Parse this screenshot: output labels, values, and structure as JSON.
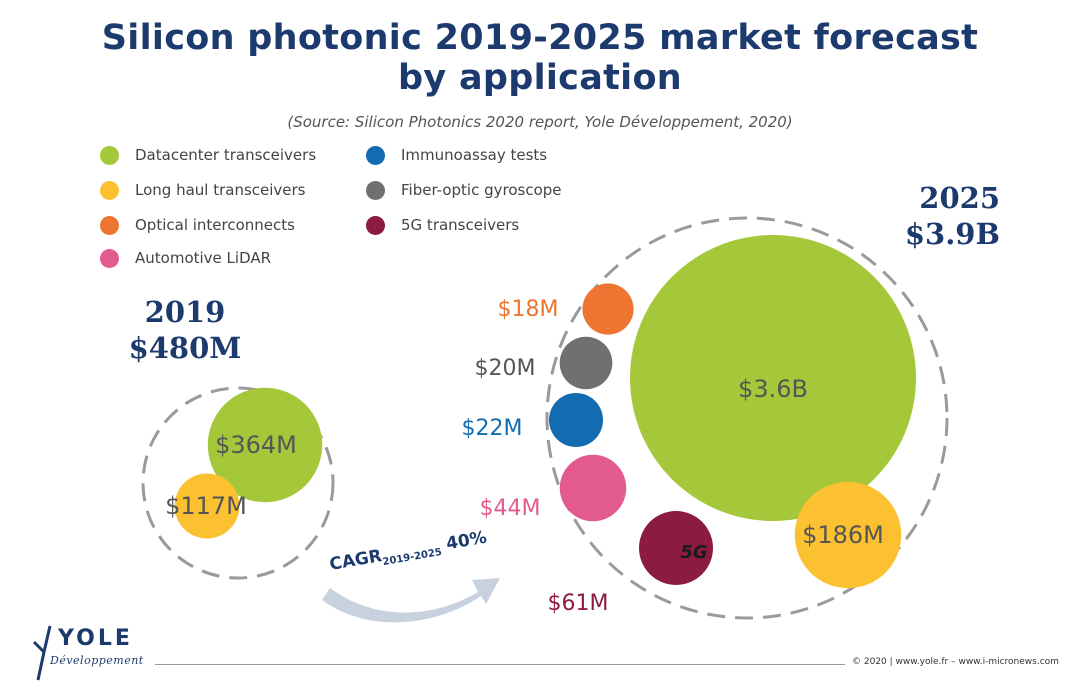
{
  "title_line1": "Silicon photonic 2019-2025 market forecast",
  "title_line2": "by application",
  "subtitle": "(Source: Silicon Photonics 2020 report, Yole Développement, 2020)",
  "legend": [
    {
      "label": "Datacenter transceivers",
      "color": "#a5c83a"
    },
    {
      "label": "Long haul transceivers",
      "color": "#fcc131"
    },
    {
      "label": "Optical interconnects",
      "color": "#ee7432"
    },
    {
      "label": "Automotive LiDAR",
      "color": "#e35a8f"
    },
    {
      "label": "Immunoassay tests",
      "color": "#136bb0"
    },
    {
      "label": "Fiber-optic gyroscope",
      "color": "#707070"
    },
    {
      "label": "5G transceivers",
      "color": "#8c1b43"
    }
  ],
  "year_2019": {
    "year": "2019",
    "total": "$480M"
  },
  "year_2025": {
    "year": "2025",
    "total": "$3.9B"
  },
  "cagr": {
    "prefix": "CAGR",
    "period": "2019-2025",
    "value": "40%"
  },
  "footer": "© 2020 | www.yole.fr – www.i-micronews.com",
  "logo": {
    "name": "YOLE",
    "sub": "Développement"
  },
  "chart_data": {
    "type": "bubble",
    "title": "Silicon photonic 2019-2025 market forecast by application",
    "unit": "USD",
    "groups": [
      {
        "name": "2019",
        "total": "$480M",
        "total_value_musd": 480,
        "points": [
          {
            "category": "Datacenter transceivers",
            "value_musd": 364,
            "label": "$364M",
            "color": "#a5c83a"
          },
          {
            "category": "Long haul transceivers",
            "value_musd": 117,
            "label": "$117M",
            "color": "#fcc131"
          }
        ]
      },
      {
        "name": "2025",
        "total": "$3.9B",
        "total_value_musd": 3900,
        "points": [
          {
            "category": "Datacenter transceivers",
            "value_musd": 3600,
            "label": "$3.6B",
            "color": "#a5c83a"
          },
          {
            "category": "Long haul transceivers",
            "value_musd": 186,
            "label": "$186M",
            "color": "#fcc131"
          },
          {
            "category": "5G transceivers",
            "value_musd": 61,
            "label": "$61M",
            "color": "#8c1b43"
          },
          {
            "category": "Automotive LiDAR",
            "value_musd": 44,
            "label": "$44M",
            "color": "#e35a8f"
          },
          {
            "category": "Immunoassay tests",
            "value_musd": 22,
            "label": "$22M",
            "color": "#136bb0"
          },
          {
            "category": "Fiber-optic gyroscope",
            "value_musd": 20,
            "label": "$20M",
            "color": "#707070"
          },
          {
            "category": "Optical interconnects",
            "value_musd": 18,
            "label": "$18M",
            "color": "#ee7432"
          }
        ]
      }
    ]
  }
}
